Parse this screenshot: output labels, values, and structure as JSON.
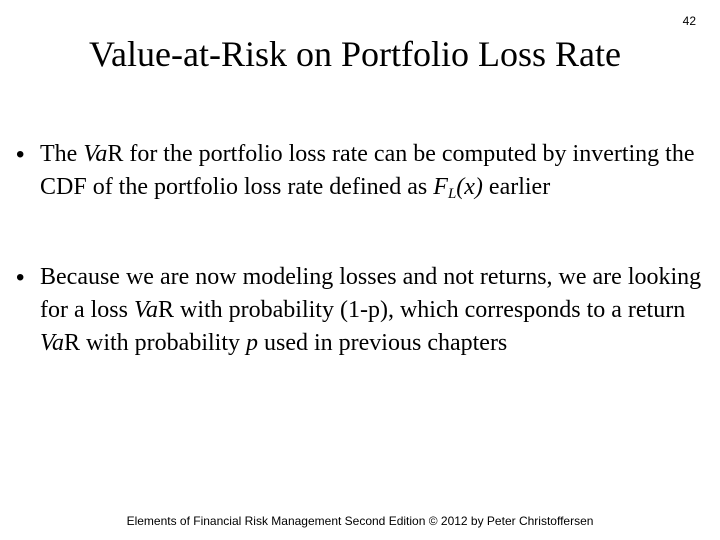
{
  "page_number": "42",
  "title": "Value-at-Risk on Portfolio Loss Rate",
  "bullets": [
    {
      "marker": "•",
      "segments": {
        "s1": "The ",
        "s2": "Va",
        "s3": "R for the portfolio loss rate can be computed by inverting the CDF of the portfolio loss rate defined as ",
        "s4": "F",
        "s5": "L",
        "s6": "(x)",
        "s7": " earlier"
      }
    },
    {
      "marker": "•",
      "segments": {
        "s1": "Because we are now modeling losses and not returns, we are looking for a loss ",
        "s2": "Va",
        "s3": "R with probability (1-p), which corresponds to a return ",
        "s4": "Va",
        "s5": "R with probability ",
        "s6": "p",
        "s7": " used in previous chapters"
      }
    }
  ],
  "footer": "Elements of Financial Risk Management Second Edition © 2012  by Peter Christoffersen"
}
